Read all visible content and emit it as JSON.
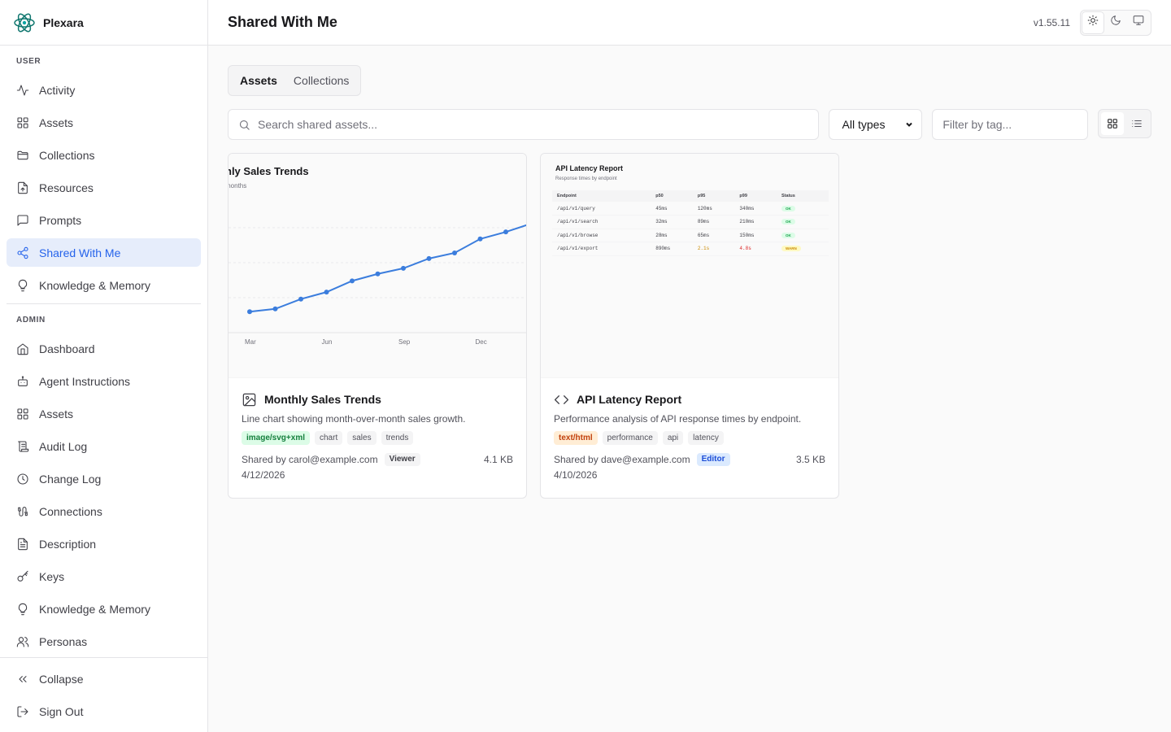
{
  "app": {
    "name": "Plexara",
    "version": "v1.55.11"
  },
  "sidebar": {
    "user_label": "USER",
    "admin_label": "ADMIN",
    "user_items": [
      {
        "label": "Activity",
        "icon": "activity-icon"
      },
      {
        "label": "Assets",
        "icon": "grid-icon"
      },
      {
        "label": "Collections",
        "icon": "folder-icon"
      },
      {
        "label": "Resources",
        "icon": "file-icon"
      },
      {
        "label": "Prompts",
        "icon": "message-icon"
      },
      {
        "label": "Shared With Me",
        "icon": "share-icon",
        "active": true
      },
      {
        "label": "Knowledge & Memory",
        "icon": "lightbulb-icon"
      }
    ],
    "admin_items": [
      {
        "label": "Dashboard",
        "icon": "home-icon"
      },
      {
        "label": "Agent Instructions",
        "icon": "bot-icon"
      },
      {
        "label": "Assets",
        "icon": "grid-icon"
      },
      {
        "label": "Audit Log",
        "icon": "scroll-icon"
      },
      {
        "label": "Change Log",
        "icon": "clock-icon"
      },
      {
        "label": "Connections",
        "icon": "cable-icon"
      },
      {
        "label": "Description",
        "icon": "document-icon"
      },
      {
        "label": "Keys",
        "icon": "key-icon"
      },
      {
        "label": "Knowledge & Memory",
        "icon": "lightbulb-icon"
      },
      {
        "label": "Personas",
        "icon": "users-icon"
      }
    ],
    "footer": {
      "collapse": "Collapse",
      "sign_out": "Sign Out"
    }
  },
  "header": {
    "title": "Shared With Me"
  },
  "tabs": [
    {
      "label": "Assets",
      "active": true
    },
    {
      "label": "Collections"
    }
  ],
  "toolbar": {
    "search_placeholder": "Search shared assets...",
    "type_select": "All types",
    "tag_placeholder": "Filter by tag..."
  },
  "cards": [
    {
      "title": "Monthly Sales Trends",
      "icon": "image-icon",
      "description": "Line chart showing month-over-month sales growth.",
      "mime": "image/svg+xml",
      "tags": [
        "chart",
        "sales",
        "trends"
      ],
      "shared_by": "Shared by carol@example.com",
      "role": "Viewer",
      "size": "4.1 KB",
      "date": "4/12/2026",
      "preview": {
        "title_visible": "hly Sales Trends",
        "subtitle_visible": "months"
      }
    },
    {
      "title": "API Latency Report",
      "icon": "code-icon",
      "description": "Performance analysis of API response times by endpoint.",
      "mime": "text/html",
      "tags": [
        "performance",
        "api",
        "latency"
      ],
      "shared_by": "Shared by dave@example.com",
      "role": "Editor",
      "size": "3.5 KB",
      "date": "4/10/2026",
      "preview": {
        "title": "API Latency Report",
        "subtitle": "Response times by endpoint",
        "columns": [
          "Endpoint",
          "p50",
          "p95",
          "p99",
          "Status"
        ],
        "rows": [
          [
            "/api/v1/query",
            "45ms",
            "120ms",
            "340ms",
            "OK"
          ],
          [
            "/api/v1/search",
            "32ms",
            "89ms",
            "210ms",
            "OK"
          ],
          [
            "/api/v1/browse",
            "28ms",
            "65ms",
            "150ms",
            "OK"
          ],
          [
            "/api/v1/export",
            "890ms",
            "2.1s",
            "4.8s",
            "WARN"
          ]
        ]
      }
    }
  ],
  "chart_data": {
    "type": "line",
    "x_tick_labels": [
      "Mar",
      "Jun",
      "Sep",
      "Dec"
    ],
    "series": [
      {
        "values": [
          15,
          17,
          24,
          29,
          37,
          42,
          46,
          53,
          57,
          67,
          72,
          78
        ]
      }
    ],
    "ylim": [
      0,
      100
    ],
    "grid": true,
    "color": "#3b7ddd"
  },
  "colors": {
    "accent": "#2563eb",
    "active_bg": "#e6edfb"
  }
}
